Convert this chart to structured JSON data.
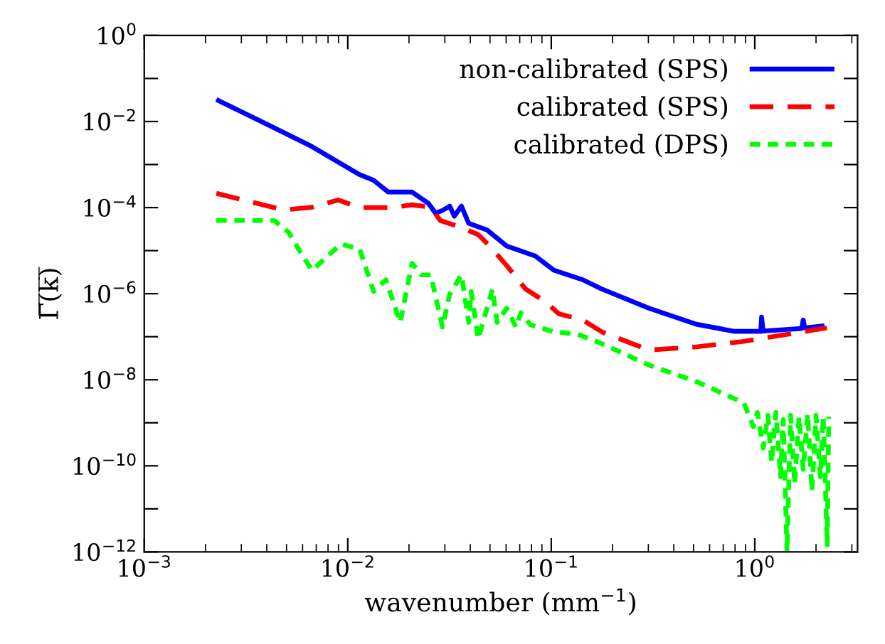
{
  "chart_data": {
    "type": "line",
    "xlabel": "wavenumber (mm$^{−1}$)",
    "ylabel": "Γ̅(̅k̅)̅",
    "log": "xy",
    "grid": false,
    "legend": "top right",
    "marker": "none",
    "xlim": [
      0.001,
      3.2
    ],
    "ylim": [
      1e-12,
      1
    ],
    "xticks": [
      {
        "value": 0.001,
        "label": "10$^{−3}$"
      },
      {
        "value": 0.01,
        "label": "10$^{−2}$"
      },
      {
        "value": 0.1,
        "label": "10$^{−1}$"
      },
      {
        "value": 1,
        "label": "10$^{0}$"
      }
    ],
    "yticks": [
      {
        "value": 1e-12,
        "label": "10$^{−12}$"
      },
      {
        "value": 1e-11,
        "label": null
      },
      {
        "value": 1e-10,
        "label": "10$^{−10}$"
      },
      {
        "value": 1e-09,
        "label": null
      },
      {
        "value": 1e-08,
        "label": "10$^{−8}$"
      },
      {
        "value": 1e-07,
        "label": null
      },
      {
        "value": 1e-06,
        "label": "10$^{−6}$"
      },
      {
        "value": 1e-05,
        "label": null
      },
      {
        "value": 0.0001,
        "label": "10$^{−4}$"
      },
      {
        "value": 0.001,
        "label": null
      },
      {
        "value": 0.01,
        "label": "10$^{−2}$"
      },
      {
        "value": 0.1,
        "label": null
      },
      {
        "value": 1,
        "label": "10$^{0}$"
      }
    ],
    "series": [
      {
        "name": "non-calibrated (SPS)",
        "color": "#0000ff",
        "line_style": "solid",
        "x": [
          0.00226,
          0.00412,
          0.00668,
          0.01138,
          0.0134,
          0.0158,
          0.0207,
          0.0249,
          0.027,
          0.0292,
          0.0317,
          0.0334,
          0.0362,
          0.0393,
          0.0484,
          0.0604,
          0.0834,
          0.103,
          0.143,
          0.176,
          0.302,
          0.516,
          0.794,
          1.07,
          1.08,
          1.1,
          1.7,
          1.73,
          1.76,
          2.2
        ],
        "values": [
          0.0325,
          0.0081,
          0.0026,
          0.00059,
          0.00043,
          0.00023,
          0.00023,
          0.000126,
          7.4e-05,
          8.6e-05,
          0.000108,
          6.3e-05,
          0.000108,
          4.3e-05,
          3e-05,
          1.28e-05,
          7.5e-06,
          3.5e-06,
          2.1e-06,
          1.3e-06,
          4.6e-07,
          1.95e-07,
          1.33e-07,
          1.33e-07,
          2.85e-07,
          1.35e-07,
          1.55e-07,
          2.44e-07,
          1.6e-07,
          1.8e-07
        ]
      },
      {
        "name": "calibrated (SPS)",
        "color": "#ff0000",
        "line_style": "dashed",
        "x": [
          0.00226,
          0.00484,
          0.00668,
          0.00898,
          0.01143,
          0.0167,
          0.0207,
          0.0256,
          0.0285,
          0.0353,
          0.0438,
          0.05,
          0.0604,
          0.0748,
          0.0927,
          0.109,
          0.143,
          0.177,
          0.302,
          0.516,
          0.883,
          2.26
        ],
        "values": [
          0.000214,
          8.8e-05,
          0.000102,
          0.00015,
          0.0001,
          0.0001,
          0.000116,
          0.000102,
          5e-05,
          3.6e-05,
          2.35e-05,
          1.25e-05,
          4.5e-06,
          1.28e-06,
          6.7e-07,
          3.4e-07,
          2.44e-07,
          1.3e-07,
          4.9e-08,
          5.8e-08,
          7.8e-08,
          1.6e-07
        ]
      },
      {
        "name": "calibrated (DPS)",
        "color": "#00ff00",
        "line_style": "dotted",
        "x": [
          0.00226,
          0.00435,
          0.00511,
          0.006,
          0.00668,
          0.00923,
          0.01143,
          0.0134,
          0.0154,
          0.0181,
          0.0207,
          0.023,
          0.0256,
          0.0292,
          0.0317,
          0.0362,
          0.0393,
          0.0404,
          0.0438,
          0.0514,
          0.0542,
          0.0604,
          0.0671,
          0.0709,
          0.0789,
          0.103,
          0.135,
          0.177,
          0.302,
          0.516,
          0.883,
          0.984,
          1.03,
          1.1,
          1.16,
          1.21,
          1.27,
          1.34,
          1.38,
          1.44,
          1.5,
          1.57,
          1.65,
          1.73,
          1.82,
          1.91,
          2.0,
          2.1,
          2.17,
          2.27,
          2.31
        ],
        "values": [
          5e-05,
          5e-05,
          2.7e-05,
          7.5e-06,
          3.5e-06,
          1.41e-05,
          1.1e-05,
          1.12e-06,
          2.1e-06,
          2.15e-07,
          5.1e-06,
          2.73e-06,
          2.73e-06,
          1.67e-07,
          9.8e-07,
          2.73e-06,
          2.15e-07,
          1.12e-06,
          8.9e-08,
          1.28e-06,
          2.15e-07,
          4.6e-07,
          1.67e-07,
          3.6e-07,
          1.9e-07,
          1.3e-07,
          1.14e-07,
          6.9e-08,
          2.19e-08,
          9.1e-09,
          2.9e-09,
          8.1e-10,
          1.74e-09,
          2.6e-10,
          1.49e-09,
          1.21e-10,
          1.74e-09,
          5.6e-11,
          1.19e-09,
          1e-12,
          1.49e-09,
          3.9e-11,
          1.38e-09,
          8.3e-11,
          1.61e-09,
          2.6e-11,
          1.49e-09,
          5.6e-11,
          1.38e-09,
          1.46e-12,
          1.38e-09
        ]
      }
    ]
  }
}
